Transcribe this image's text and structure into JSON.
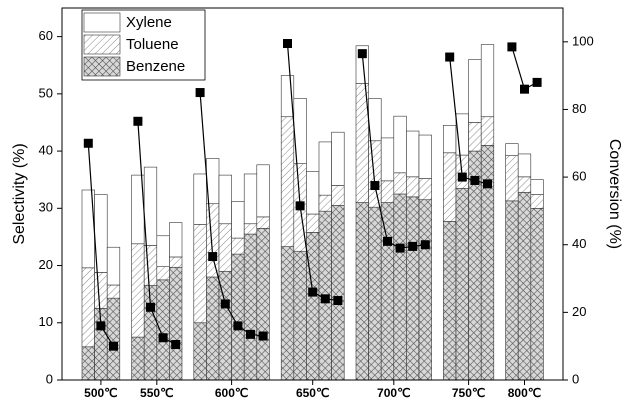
{
  "chart_data": {
    "type": "stacked-bar",
    "categories": [
      "500℃",
      "550℃",
      "600℃",
      "650℃",
      "700℃",
      "750℃",
      "800℃"
    ],
    "series": [
      {
        "name": "Benzene",
        "color": "#555555",
        "values": [
          [
            5.8,
            12.5,
            14.3
          ],
          [
            7.5,
            16.5,
            17.5,
            19.7
          ],
          [
            10,
            18,
            19,
            22,
            25.5,
            26.5
          ],
          [
            23.3,
            22.5,
            25.8,
            29.5,
            30.5
          ],
          [
            31,
            30.2,
            31,
            32.5,
            32,
            31.5
          ],
          [
            27.7,
            33.5,
            40,
            41
          ],
          [
            31.3,
            32.8,
            30
          ]
        ]
      },
      {
        "name": "Toluene",
        "color": "#888888",
        "values": [
          [
            13.8,
            6.3,
            2.3
          ],
          [
            16.3,
            7.0,
            2.3,
            1.8
          ],
          [
            17.2,
            12.8,
            8.3,
            2.8,
            1.8,
            2
          ],
          [
            22.7,
            15.3,
            3.2,
            2.8,
            3.5
          ],
          [
            20.8,
            11.6,
            3.8,
            3.7,
            3.5,
            3.7
          ],
          [
            12,
            5.8,
            5,
            5
          ],
          [
            7.9,
            2.7,
            2.4
          ]
        ]
      },
      {
        "name": "Xylene",
        "color": "#ffffff",
        "values": [
          [
            13.6,
            13.6,
            6.6
          ],
          [
            12.0,
            13.7,
            5.4,
            6.0
          ],
          [
            8.8,
            7.9,
            8.5,
            6.4,
            8.7,
            9.1
          ],
          [
            7.2,
            11.4,
            7.4,
            9.3,
            9.3
          ],
          [
            6.6,
            7.4,
            7.5,
            9.9,
            8,
            7.6
          ],
          [
            4.8,
            7.2,
            11,
            12.6
          ],
          [
            2.1,
            4,
            2.6
          ]
        ]
      }
    ],
    "conversion": {
      "axis": "y2",
      "color": "#000000",
      "values": [
        [
          70,
          16,
          10
        ],
        [
          76.5,
          21.5,
          12.5,
          10.5
        ],
        [
          85,
          36.5,
          22.5,
          16,
          13.5,
          13
        ],
        [
          99.5,
          51.5,
          26,
          24,
          23.5
        ],
        [
          96.5,
          57.5,
          41,
          39,
          39.5,
          40
        ],
        [
          95.5,
          60,
          59,
          58
        ],
        [
          98.5,
          86,
          88
        ]
      ]
    },
    "ylabel": "Selectivity (%)",
    "y2label": "Conversion (%)",
    "ylim": [
      0,
      65
    ],
    "yticks": [
      0,
      10,
      20,
      30,
      40,
      50,
      60
    ],
    "y2lim": [
      0,
      110
    ],
    "y2ticks": [
      0,
      20,
      40,
      60,
      80,
      100
    ],
    "legend": "upper left"
  }
}
